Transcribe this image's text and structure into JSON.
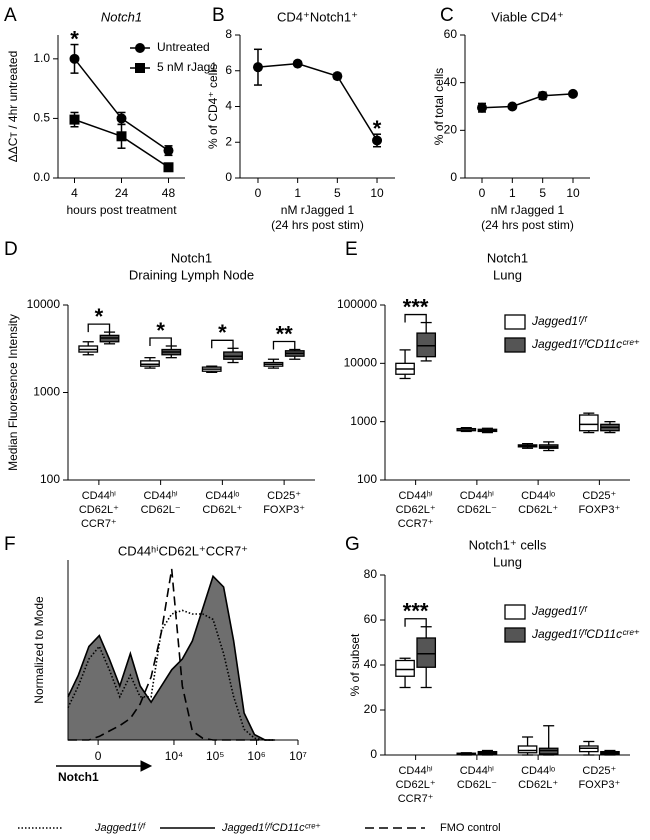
{
  "chart_data": [
    {
      "type": "line",
      "panel": "A",
      "title": "Notch1",
      "ylabel": "ΔΔCᴛ / 4hr untreated",
      "xlabel": "hours post treatment",
      "categories": [
        "4",
        "24",
        "48"
      ],
      "ylim": [
        0,
        1.2
      ],
      "yticks": [
        {
          "value": 0,
          "label": "0.0"
        },
        0.5,
        {
          "value": 1,
          "label": "1.0"
        }
      ],
      "legend": "upper right",
      "series": [
        {
          "name": "Untreated",
          "color": "#000000",
          "marker": "circle",
          "values": [
            1.0,
            0.5,
            0.23
          ],
          "errors": [
            0.12,
            0.05,
            0.04
          ]
        },
        {
          "name": "5 nM rJag1",
          "color": "#000000",
          "marker": "square",
          "values": [
            0.49,
            0.35,
            0.09
          ],
          "errors": [
            0.06,
            0.1,
            0.02
          ]
        }
      ],
      "significance": [
        "*",
        null,
        null
      ]
    },
    {
      "type": "line",
      "panel": "B",
      "title": "CD4⁺Notch1⁺",
      "ylabel": "% of CD4⁺ cells",
      "xlabel": [
        "nM rJagged 1",
        "(24 hrs post stim)"
      ],
      "categories": [
        "0",
        "1",
        "5",
        "10"
      ],
      "ylim": [
        0,
        8
      ],
      "yticks": [
        0,
        2,
        4,
        6,
        8
      ],
      "series": [
        {
          "color": "#000000",
          "marker": "circle",
          "values": [
            6.2,
            6.4,
            5.7,
            2.1
          ],
          "errors": [
            1.0,
            0.1,
            0.15,
            0.35
          ]
        }
      ],
      "significance": [
        null,
        null,
        null,
        "*"
      ]
    },
    {
      "type": "line",
      "panel": "C",
      "title": "Viable CD4⁺",
      "ylabel": "% of total cells",
      "xlabel": [
        "nM rJagged 1",
        "(24 hrs post stim)"
      ],
      "categories": [
        "0",
        "1",
        "5",
        "10"
      ],
      "ylim": [
        0,
        60
      ],
      "yticks": [
        0,
        20,
        40,
        60
      ],
      "series": [
        {
          "color": "#000000",
          "marker": "circle",
          "values": [
            29.5,
            30,
            34.5,
            35.3
          ],
          "errors": [
            1.8,
            0.8,
            1.5,
            0.8
          ]
        }
      ]
    },
    {
      "type": "box",
      "panel": "D",
      "title": [
        "Notch1",
        "Draining Lymph Node"
      ],
      "ylabel": "Median Fluoresence Intensity",
      "categories": [
        [
          "CD44ʰⁱ",
          "CD62L⁺",
          "CCR7⁺"
        ],
        [
          "CD44ʰⁱ",
          "CD62L⁻"
        ],
        [
          "CD44ˡᵒ",
          "CD62L⁺"
        ],
        [
          "CD25⁺",
          "FOXP3⁺"
        ]
      ],
      "log_y": true,
      "ylim": [
        100,
        10000
      ],
      "yticks": [
        100,
        1000,
        10000
      ],
      "series": [
        {
          "color": "#ffffff",
          "values": [
            [
              2700,
              2900,
              3100,
              3400,
              3800
            ],
            [
              1900,
              2000,
              2100,
              2300,
              2500
            ],
            [
              1700,
              1750,
              1850,
              1950,
              2000
            ],
            [
              1900,
              2000,
              2100,
              2200,
              2400
            ]
          ]
        },
        {
          "color": "#555555",
          "values": [
            [
              3600,
              3800,
              4200,
              4500,
              4900
            ],
            [
              2500,
              2700,
              2900,
              3100,
              3400
            ],
            [
              2200,
              2400,
              2600,
              2900,
              3200
            ],
            [
              2400,
              2600,
              2800,
              3000,
              3100
            ]
          ]
        }
      ],
      "significance": [
        "*",
        "*",
        "*",
        "**"
      ]
    },
    {
      "type": "box",
      "panel": "E",
      "title": [
        "Notch1",
        "Lung"
      ],
      "categories": [
        [
          "CD44ʰⁱ",
          "CD62L⁺",
          "CCR7⁺"
        ],
        [
          "CD44ʰⁱ",
          "CD62L⁻"
        ],
        [
          "CD44ˡᵒ",
          "CD62L⁺"
        ],
        [
          "CD25⁺",
          "FOXP3⁺"
        ]
      ],
      "log_y": true,
      "ylim": [
        100,
        100000
      ],
      "yticks": [
        100,
        1000,
        10000,
        100000
      ],
      "legend": "upper right",
      "series": [
        {
          "name": "Jagged1ᶠ/ᶠ",
          "color": "#ffffff",
          "values": [
            [
              5500,
              6500,
              8000,
              10000,
              17000
            ],
            [
              680,
              700,
              720,
              760,
              790
            ],
            [
              350,
              370,
              380,
              400,
              420
            ],
            [
              650,
              700,
              900,
              1300,
              1400
            ]
          ]
        },
        {
          "name": "Jagged1ᶠ/ᶠCD11cᶜʳᵉ⁺",
          "color": "#555555",
          "values": [
            [
              11000,
              13000,
              20000,
              33000,
              50000
            ],
            [
              650,
              680,
              700,
              740,
              770
            ],
            [
              320,
              350,
              370,
              400,
              450
            ],
            [
              650,
              700,
              800,
              900,
              1000
            ]
          ]
        }
      ],
      "significance": [
        "***",
        null,
        null,
        null
      ]
    },
    {
      "type": "density",
      "panel": "F",
      "title": "CD44ʰⁱCD62L⁺CCR7⁺",
      "ylabel": "Normalized to Mode",
      "xlabel": "Notch1",
      "xlim": [
        -650,
        10000000
      ],
      "ylim": [
        0,
        100
      ],
      "xticks": [
        0,
        {
          "value": 10000,
          "label": "10⁴"
        },
        {
          "value": 100000,
          "label": "10⁵"
        },
        {
          "value": 1000000,
          "label": "10⁶"
        },
        {
          "value": 10000000,
          "label": "10⁷"
        }
      ],
      "x": [
        -650,
        -300,
        -100,
        10,
        130,
        350,
        750,
        1400,
        2700,
        4900,
        8800,
        16000,
        28000,
        50000,
        89000,
        160000,
        280000,
        500000,
        890000,
        1600000,
        2800000
      ],
      "legend": "bottom",
      "series": [
        {
          "name": "Jagged1ᶠ/ᶠCD11cᶜʳᵉ⁺",
          "color": "#000000",
          "fill": "#6e6e6e",
          "dash": "solid",
          "values": [
            24,
            36,
            52,
            58,
            45,
            30,
            48,
            30,
            21,
            30,
            39,
            45,
            55,
            73,
            91,
            85,
            55,
            15,
            3,
            0,
            0
          ]
        },
        {
          "name": "Jagged1ᶠ/ᶠ",
          "color": "#000000",
          "dash": "dotted",
          "values": [
            18,
            30,
            45,
            52,
            39,
            24,
            36,
            24,
            24,
            61,
            70,
            72,
            70,
            70,
            67,
            48,
            24,
            6,
            1,
            0,
            0
          ]
        },
        {
          "name": "FMO control",
          "color": "#000000",
          "dash": "dashed",
          "values": [
            0,
            0,
            0,
            2,
            5,
            8,
            12,
            20,
            35,
            60,
            95,
            30,
            5,
            1,
            0,
            0,
            0,
            0,
            0,
            0,
            0
          ]
        }
      ]
    },
    {
      "type": "box",
      "panel": "G",
      "title": [
        "Notch1⁺ cells",
        "Lung"
      ],
      "ylabel": "% of subset",
      "categories": [
        [
          "CD44ʰⁱ",
          "CD62L⁺",
          "CCR7⁺"
        ],
        [
          "CD44ʰⁱ",
          "CD62L⁻"
        ],
        [
          "CD44ˡᵒ",
          "CD62L⁺"
        ],
        [
          "CD25⁺",
          "FOXP3⁺"
        ]
      ],
      "ylim": [
        0,
        80
      ],
      "yticks": [
        0,
        20,
        40,
        60,
        80
      ],
      "legend": "upper right",
      "series": [
        {
          "name": "Jagged1ᶠ/ᶠ",
          "color": "#ffffff",
          "values": [
            [
              30,
              35,
              38,
              42,
              43
            ],
            [
              0,
              0.3,
              0.5,
              0.8,
              1
            ],
            [
              0,
              1,
              2,
              4,
              8
            ],
            [
              0,
              1.5,
              3,
              4,
              6
            ]
          ]
        },
        {
          "name": "Jagged1ᶠ/ᶠCD11cᶜʳᵉ⁺",
          "color": "#555555",
          "values": [
            [
              30,
              39,
              45,
              52,
              57
            ],
            [
              0,
              0.5,
              1,
              1.5,
              2
            ],
            [
              0,
              0.5,
              2,
              3,
              13
            ],
            [
              0,
              0.5,
              1,
              1.5,
              2
            ]
          ]
        }
      ],
      "significance": [
        "***",
        null,
        null,
        null
      ]
    }
  ]
}
